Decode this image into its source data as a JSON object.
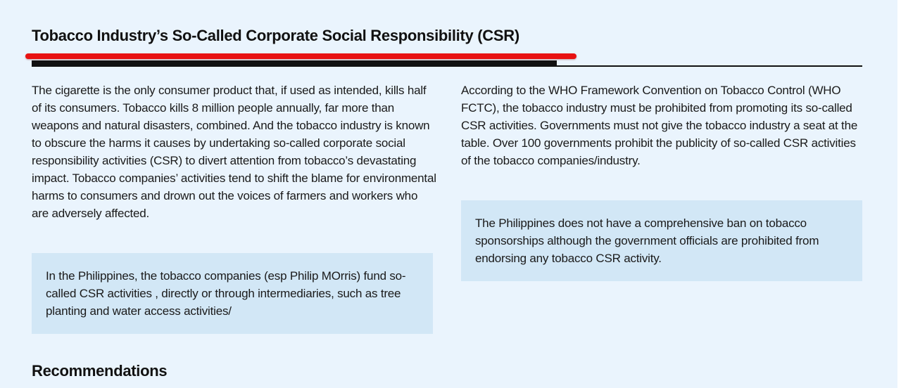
{
  "section": {
    "title": "Tobacco Industry’s So-Called Corporate Social Responsibility (CSR)"
  },
  "left_column": {
    "paragraph": "The cigarette is the only consumer product that, if used as intended, kills half of its consumers. Tobacco kills 8 million people annually, far more than weapons and natural disasters, combined. And the tobacco industry is known to obscure the harms it causes by undertaking so-called corporate social responsibility activities (CSR) to divert attention from tobacco’s devastating impact. Tobacco companies’ activities tend to shift the blame for environmental harms to consumers and drown out the voices of farmers and workers who are adversely affected.",
    "callout": "In the Philippines, the tobacco companies (esp Philip MOrris) fund so-called CSR activities , directly or through intermediaries, such as tree planting and water access activities/"
  },
  "right_column": {
    "paragraph": "According to the WHO Framework Convention on Tobacco Control (WHO FCTC), the tobacco industry must be prohibited from promoting its so-called CSR activities. Governments must not give the tobacco industry a seat at the table. Over 100 governments prohibit the publicity of so-called CSR activities of the tobacco companies/industry.",
    "callout": "The Philippines does not have a comprehensive ban on tobacco sponsorships although the government officials are prohibited from endorsing any tobacco CSR activity."
  },
  "next_section": {
    "title": "Recommendations"
  },
  "colors": {
    "panel_background": "#eaf4fd",
    "callout_background": "#d2e7f6",
    "annotation_red": "#e81212",
    "text": "#1a1a1a"
  }
}
